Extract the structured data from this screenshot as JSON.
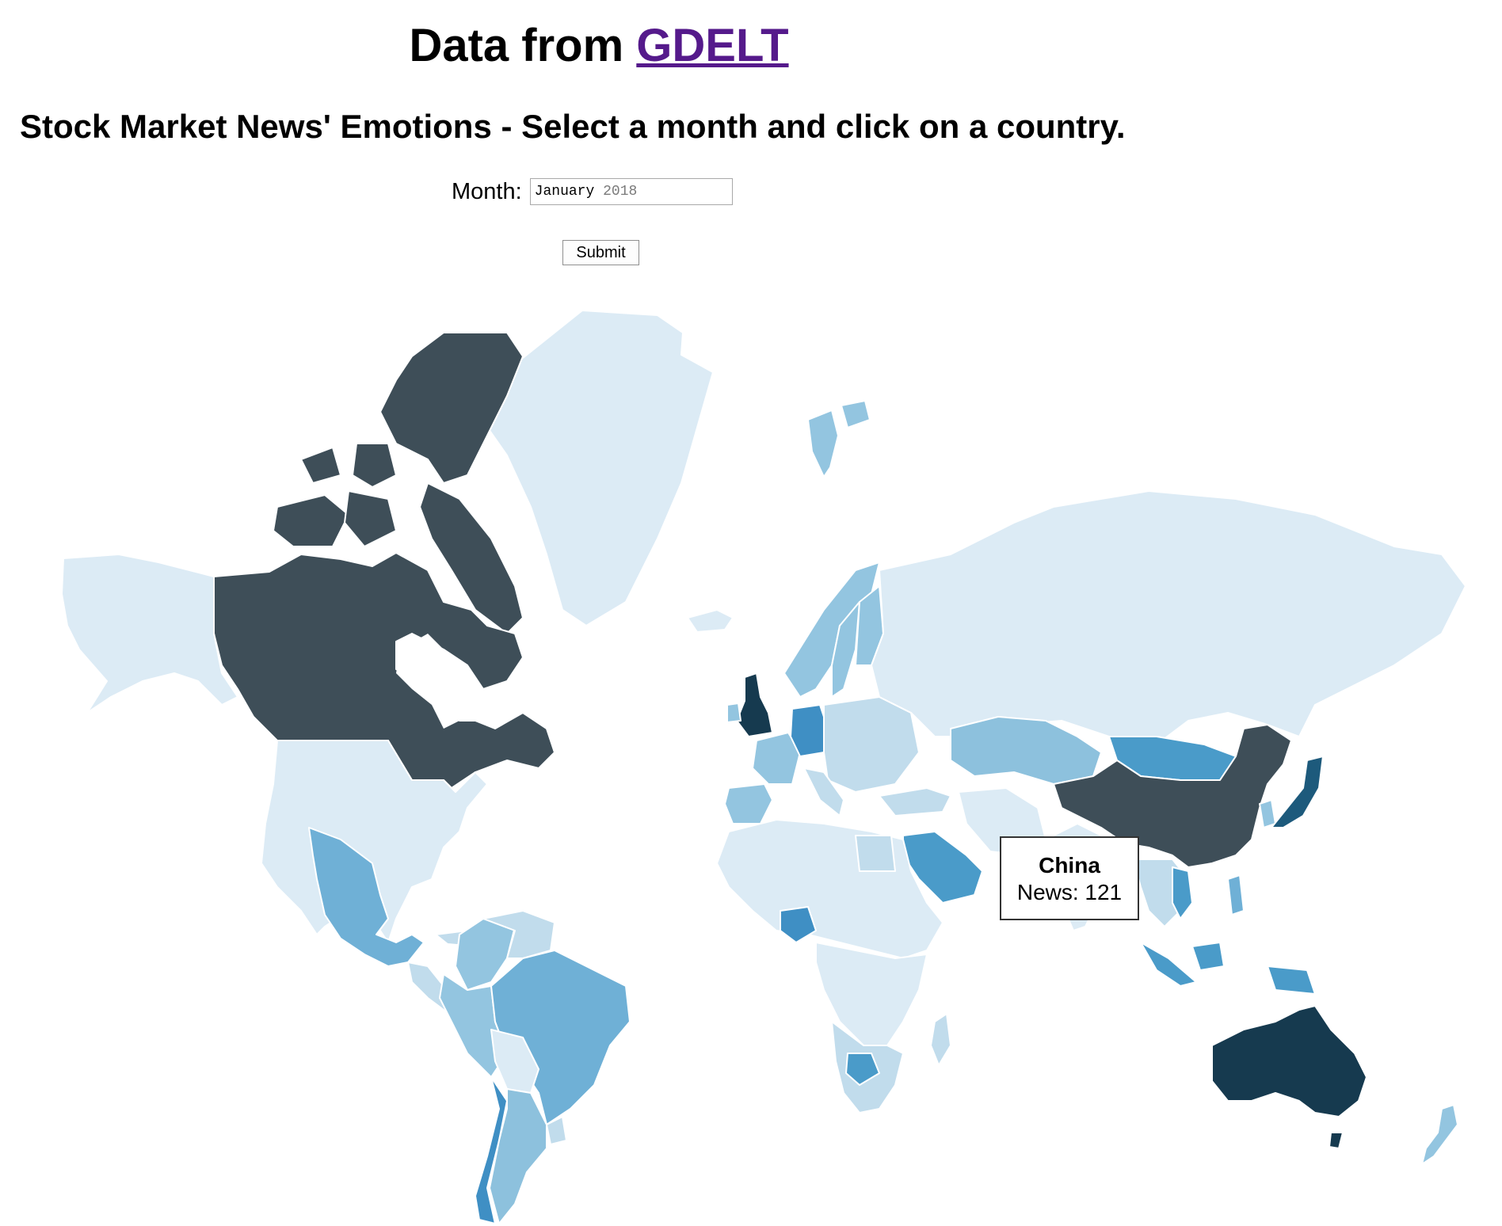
{
  "header": {
    "title_prefix": "Data from",
    "title_link": "GDELT",
    "subtitle": "Stock Market News' Emotions - Select a month and click on a country."
  },
  "form": {
    "month_label": "Month:",
    "month_value_month": "January",
    "month_value_year": "2018",
    "submit_label": "Submit"
  },
  "tooltip": {
    "country": "China",
    "news_label": "News:",
    "news_count": "121",
    "news_text": "News: 121"
  },
  "map": {
    "type": "choropleth",
    "measure": "News",
    "color_scale": [
      "#dcebf5",
      "#c1dcec",
      "#93c5e0",
      "#6fb0d6",
      "#4a9bc9",
      "#3e4e58",
      "#163a4f"
    ],
    "countries": [
      {
        "name": "Canada",
        "color": "#3e4e58"
      },
      {
        "name": "China",
        "color": "#3e4e58",
        "news": 121
      },
      {
        "name": "Australia",
        "color": "#163a4f"
      },
      {
        "name": "United Kingdom",
        "color": "#163a4f"
      },
      {
        "name": "Japan",
        "color": "#1d5a7c"
      },
      {
        "name": "Germany",
        "color": "#3f8fc4"
      },
      {
        "name": "Nigeria",
        "color": "#3f8fc4"
      },
      {
        "name": "Saudi Arabia",
        "color": "#4a9bc9"
      },
      {
        "name": "Mongolia",
        "color": "#4a9bc9"
      },
      {
        "name": "South Africa",
        "color": "#4a9bc9"
      },
      {
        "name": "Brazil",
        "color": "#6fb0d6"
      },
      {
        "name": "Mexico",
        "color": "#6fb0d6"
      },
      {
        "name": "Kazakhstan",
        "color": "#8dc1dd"
      },
      {
        "name": "Argentina",
        "color": "#8dc1dd"
      },
      {
        "name": "Chile",
        "color": "#3f8fc4"
      },
      {
        "name": "Peru",
        "color": "#93c5e0"
      },
      {
        "name": "Norway",
        "color": "#93c5e0"
      },
      {
        "name": "Sweden",
        "color": "#93c5e0"
      },
      {
        "name": "Russia",
        "color": "#dcebf5"
      },
      {
        "name": "United States",
        "color": "#dcebf5"
      },
      {
        "name": "Greenland",
        "color": "#dcebf5"
      }
    ]
  }
}
